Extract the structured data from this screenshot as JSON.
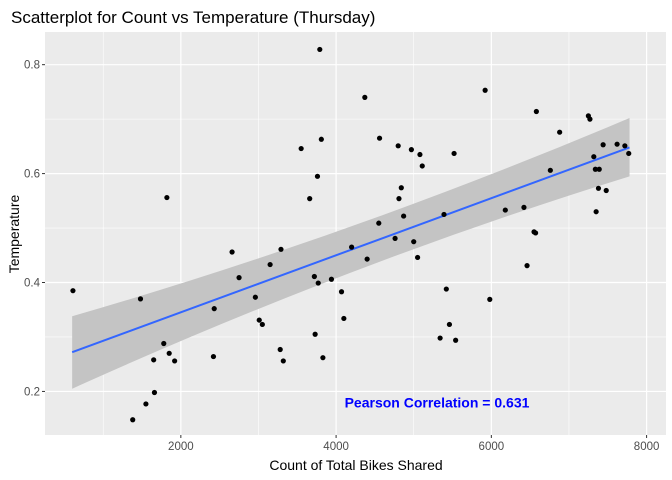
{
  "chart_data": {
    "type": "scatter",
    "title": "Scatterplot for Count vs Temperature (Thursday)",
    "xlabel": "Count of Total Bikes Shared",
    "ylabel": "Temperature",
    "xlim": [
      250,
      8250
    ],
    "ylim": [
      0.12,
      0.86
    ],
    "x_ticks": [
      2000,
      4000,
      6000,
      8000
    ],
    "x_tick_labels": [
      "2000",
      "4000",
      "6000",
      "8000"
    ],
    "y_ticks": [
      0.2,
      0.4,
      0.6,
      0.8
    ],
    "y_tick_labels": [
      "0.2",
      "0.4",
      "0.6",
      "0.8"
    ],
    "grid": true,
    "annotation": {
      "text": "Pearson Correlation = 0.631",
      "x": 5300,
      "y": 0.18,
      "color": "#0000ff"
    },
    "colors": {
      "panel_background": "#ebebeb",
      "grid": "#ffffff",
      "points": "#000000",
      "fit_line": "#3366ff",
      "confidence_band": "#c4c4c4"
    },
    "fit": {
      "method": "linear",
      "x_range": [
        600,
        7780
      ],
      "y_start": 0.272,
      "y_end": 0.648,
      "band_start": [
        0.205,
        0.338
      ],
      "band_mid": [
        0.437,
        0.486
      ],
      "band_mid_x": 4200,
      "band_end": [
        0.595,
        0.702
      ]
    },
    "points": [
      [
        610,
        0.385
      ],
      [
        1380,
        0.148
      ],
      [
        1480,
        0.37
      ],
      [
        1550,
        0.177
      ],
      [
        1650,
        0.258
      ],
      [
        1660,
        0.198
      ],
      [
        1780,
        0.288
      ],
      [
        1820,
        0.556
      ],
      [
        1850,
        0.27
      ],
      [
        1920,
        0.256
      ],
      [
        2420,
        0.264
      ],
      [
        2430,
        0.352
      ],
      [
        2660,
        0.456
      ],
      [
        2750,
        0.409
      ],
      [
        2960,
        0.373
      ],
      [
        3010,
        0.331
      ],
      [
        3050,
        0.323
      ],
      [
        3150,
        0.433
      ],
      [
        3280,
        0.277
      ],
      [
        3290,
        0.461
      ],
      [
        3320,
        0.256
      ],
      [
        3550,
        0.646
      ],
      [
        3660,
        0.554
      ],
      [
        3720,
        0.411
      ],
      [
        3730,
        0.305
      ],
      [
        3760,
        0.595
      ],
      [
        3770,
        0.399
      ],
      [
        3790,
        0.828
      ],
      [
        3810,
        0.663
      ],
      [
        3830,
        0.262
      ],
      [
        3940,
        0.406
      ],
      [
        4070,
        0.383
      ],
      [
        4100,
        0.334
      ],
      [
        4200,
        0.465
      ],
      [
        4370,
        0.74
      ],
      [
        4400,
        0.443
      ],
      [
        4550,
        0.509
      ],
      [
        4560,
        0.665
      ],
      [
        4760,
        0.481
      ],
      [
        4800,
        0.651
      ],
      [
        4810,
        0.554
      ],
      [
        4840,
        0.574
      ],
      [
        4870,
        0.522
      ],
      [
        4970,
        0.644
      ],
      [
        5000,
        0.475
      ],
      [
        5050,
        0.446
      ],
      [
        5080,
        0.635
      ],
      [
        5110,
        0.614
      ],
      [
        5340,
        0.298
      ],
      [
        5390,
        0.525
      ],
      [
        5420,
        0.388
      ],
      [
        5460,
        0.323
      ],
      [
        5520,
        0.637
      ],
      [
        5540,
        0.294
      ],
      [
        5920,
        0.753
      ],
      [
        5980,
        0.369
      ],
      [
        6180,
        0.533
      ],
      [
        6420,
        0.538
      ],
      [
        6460,
        0.431
      ],
      [
        6550,
        0.493
      ],
      [
        6570,
        0.491
      ],
      [
        6580,
        0.714
      ],
      [
        6760,
        0.606
      ],
      [
        6880,
        0.676
      ],
      [
        7250,
        0.706
      ],
      [
        7270,
        0.7
      ],
      [
        7320,
        0.631
      ],
      [
        7340,
        0.608
      ],
      [
        7350,
        0.53
      ],
      [
        7380,
        0.573
      ],
      [
        7390,
        0.608
      ],
      [
        7440,
        0.653
      ],
      [
        7480,
        0.569
      ],
      [
        7620,
        0.654
      ],
      [
        7720,
        0.651
      ],
      [
        7770,
        0.637
      ]
    ]
  }
}
